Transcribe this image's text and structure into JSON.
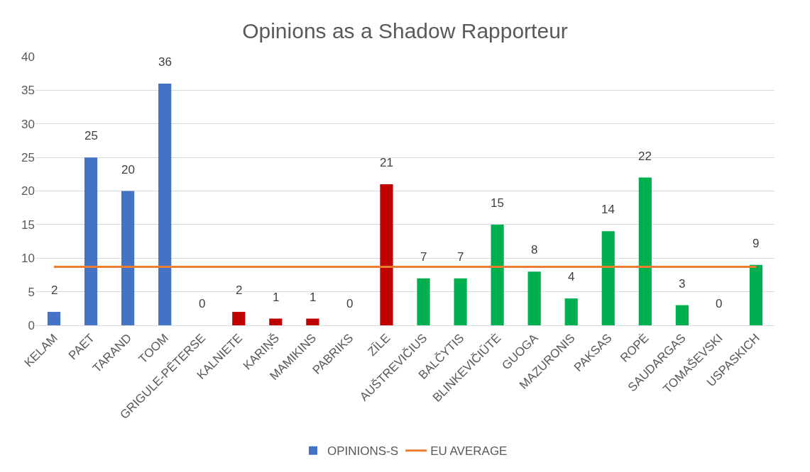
{
  "chart_data": {
    "type": "bar",
    "title": "Opinions as a Shadow Rapporteur",
    "categories": [
      "KELAM",
      "PAET",
      "TARAND",
      "TOOM",
      "GRIGULE-PĒTERSE",
      "KALNIETE",
      "KARIŅŠ",
      "MAMIKINS",
      "PABRIKS",
      "ZĪLE",
      "AUŠTREVIČIUS",
      "BALČYTIS",
      "BLINKEVIČIŪTĖ",
      "GUOGA",
      "MAZURONIS",
      "PAKSAS",
      "ROPĖ",
      "SAUDARGAS",
      "TOMAŠEVSKI",
      "USPASKICH"
    ],
    "series": [
      {
        "name": "OPINIONS-S",
        "color": "#4472c4",
        "colors": [
          "#4472c4",
          "#4472c4",
          "#4472c4",
          "#4472c4",
          "#c00000",
          "#c00000",
          "#c00000",
          "#c00000",
          "#c00000",
          "#c00000",
          "#00b050",
          "#00b050",
          "#00b050",
          "#00b050",
          "#00b050",
          "#00b050",
          "#00b050",
          "#00b050",
          "#00b050",
          "#00b050"
        ],
        "values": [
          2,
          25,
          20,
          36,
          0,
          2,
          1,
          1,
          0,
          21,
          7,
          7,
          15,
          8,
          4,
          14,
          22,
          3,
          0,
          9
        ],
        "data_labels": true
      },
      {
        "name": "EU AVERAGE",
        "type": "line",
        "color": "#ed7d31",
        "values": [
          8.7,
          8.7,
          8.7,
          8.7,
          8.7,
          8.7,
          8.7,
          8.7,
          8.7,
          8.7,
          8.7,
          8.7,
          8.7,
          8.7,
          8.7,
          8.7,
          8.7,
          8.7,
          8.7,
          8.7
        ],
        "marker": "none"
      }
    ],
    "ylim": [
      0,
      40
    ],
    "yticks": [
      0,
      5,
      10,
      15,
      20,
      25,
      30,
      35,
      40
    ],
    "grid": "y",
    "legend": "bottom"
  }
}
